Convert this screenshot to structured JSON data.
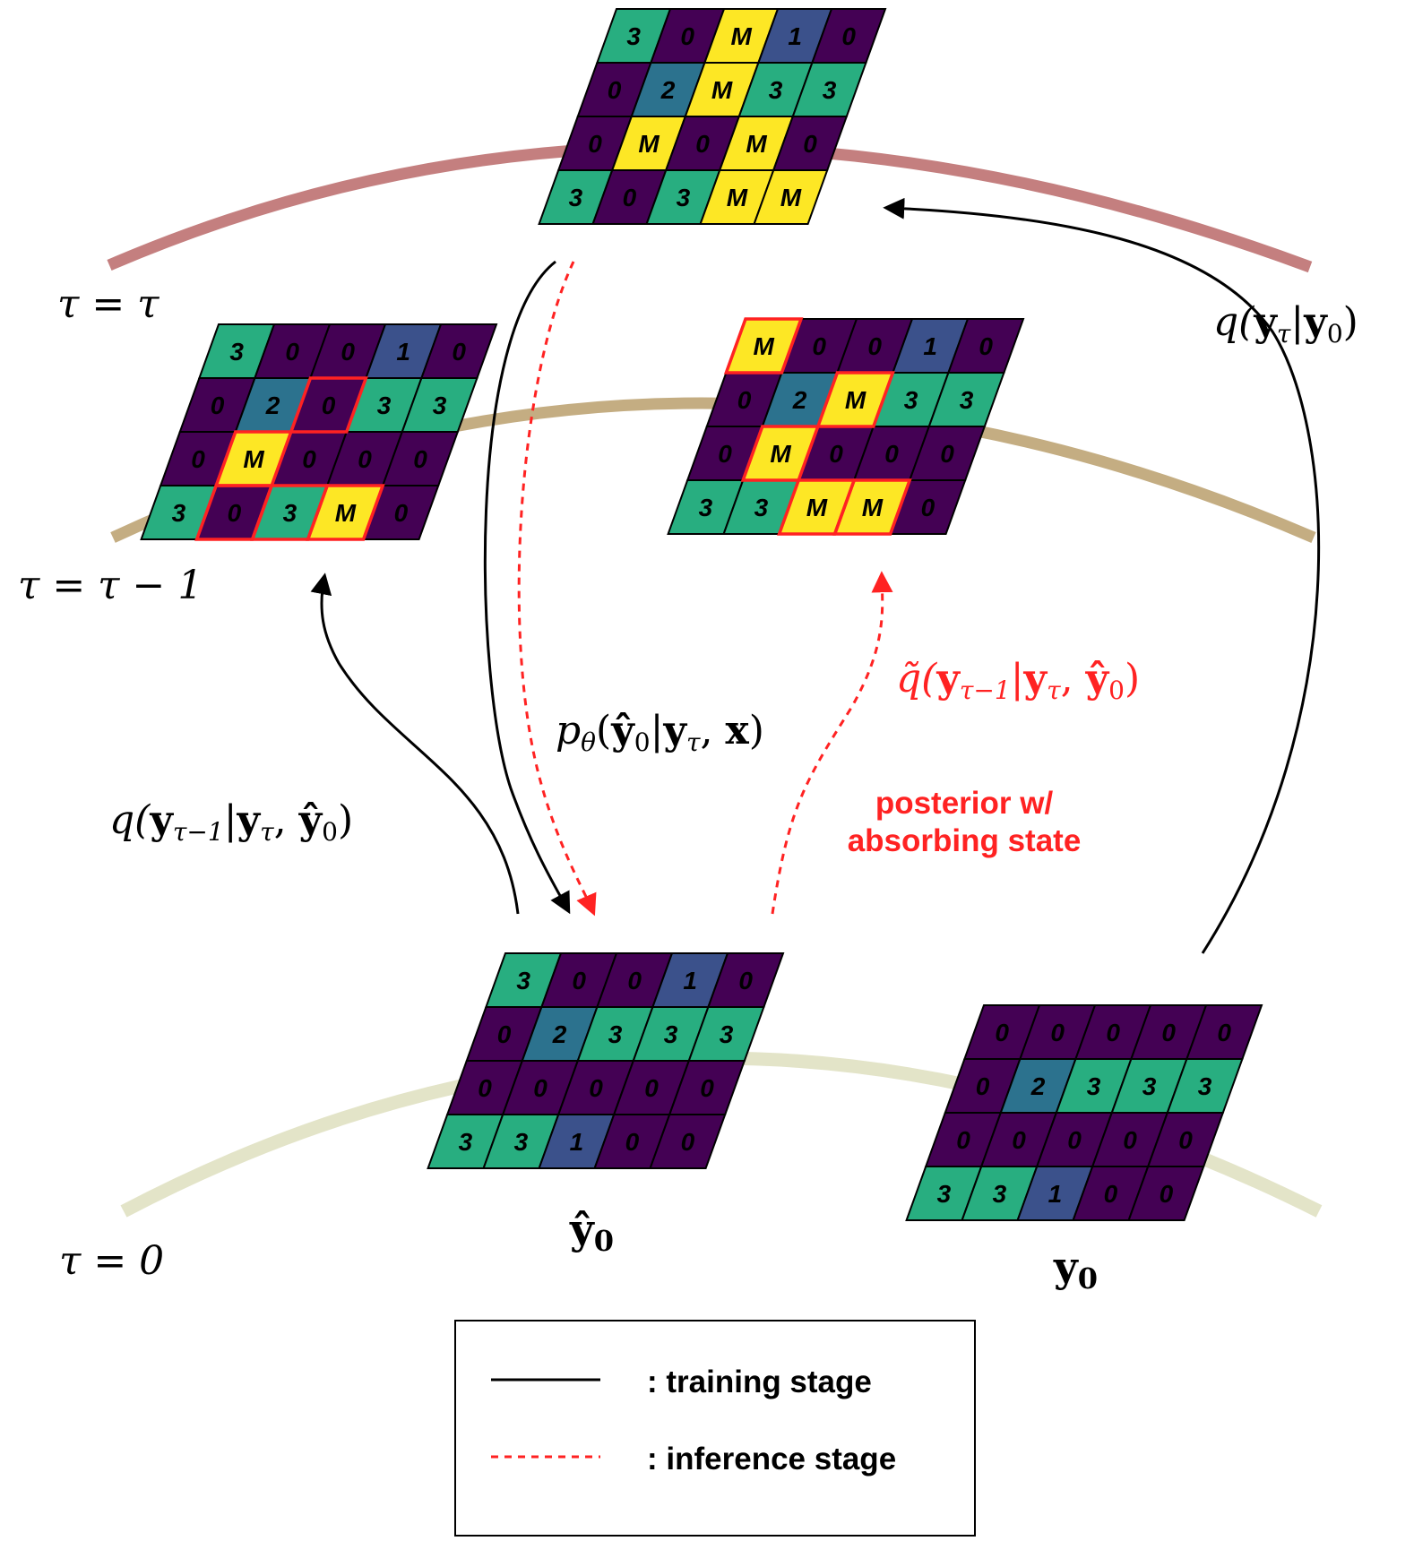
{
  "colors": {
    "0": "#440154",
    "1": "#3b518b",
    "2": "#2c728e",
    "3": "#28ae80",
    "M": "#fde725",
    "arc_top": "#c47f7f",
    "arc_mid": "#c4ad82",
    "arc_bottom": "#e3e4c8",
    "training": "#000000",
    "inference": "#ff2222"
  },
  "levels": {
    "top": "τ = τ",
    "mid": "τ = τ − 1",
    "bottom": "τ = 0"
  },
  "grids": {
    "top": {
      "rows": [
        [
          "3",
          "0",
          "M",
          "1",
          "0"
        ],
        [
          "0",
          "2",
          "M",
          "3",
          "3"
        ],
        [
          "0",
          "M",
          "0",
          "M",
          "0"
        ],
        [
          "3",
          "0",
          "3",
          "M",
          "M"
        ]
      ],
      "highlight": []
    },
    "mid_left": {
      "rows": [
        [
          "3",
          "0",
          "0",
          "1",
          "0"
        ],
        [
          "0",
          "2",
          "0",
          "3",
          "3"
        ],
        [
          "0",
          "M",
          "0",
          "0",
          "0"
        ],
        [
          "3",
          "0",
          "3",
          "M",
          "0"
        ]
      ],
      "highlight": [
        [
          1,
          2
        ],
        [
          2,
          1
        ],
        [
          3,
          1
        ],
        [
          3,
          2
        ],
        [
          3,
          3
        ]
      ]
    },
    "mid_right": {
      "rows": [
        [
          "M",
          "0",
          "0",
          "1",
          "0"
        ],
        [
          "0",
          "2",
          "M",
          "3",
          "3"
        ],
        [
          "0",
          "M",
          "0",
          "0",
          "0"
        ],
        [
          "3",
          "3",
          "M",
          "M",
          "0"
        ]
      ],
      "highlight": [
        [
          0,
          0
        ],
        [
          1,
          2
        ],
        [
          2,
          1
        ],
        [
          3,
          2
        ],
        [
          3,
          3
        ]
      ]
    },
    "pred": {
      "rows": [
        [
          "3",
          "0",
          "0",
          "1",
          "0"
        ],
        [
          "0",
          "2",
          "3",
          "3",
          "3"
        ],
        [
          "0",
          "0",
          "0",
          "0",
          "0"
        ],
        [
          "3",
          "3",
          "1",
          "0",
          "0"
        ]
      ],
      "highlight": []
    },
    "gt": {
      "rows": [
        [
          "0",
          "0",
          "0",
          "0",
          "0"
        ],
        [
          "0",
          "2",
          "3",
          "3",
          "3"
        ],
        [
          "0",
          "0",
          "0",
          "0",
          "0"
        ],
        [
          "3",
          "3",
          "1",
          "0",
          "0"
        ]
      ],
      "highlight": []
    }
  },
  "grid_labels": {
    "pred": "ŷ",
    "pred_sub": "0",
    "gt": "y",
    "gt_sub": "0"
  },
  "formulas": {
    "forward": {
      "pre": "q(",
      "y": "y",
      "tau": "τ",
      "mid": "|",
      "y0": "y",
      "zero": "0",
      "post": ")"
    },
    "model": {
      "pre": "p",
      "theta": "θ",
      "open": "(",
      "yhat": "ŷ",
      "zero": "0",
      "bar": "|",
      "y": "y",
      "tau": "τ",
      "comma": ", ",
      "x": "x",
      "close": ")"
    },
    "train_post": {
      "pre": "q(",
      "y": "y",
      "sub": "τ−1",
      "bar": "|",
      "y2": "y",
      "tau": "τ",
      "comma": ", ",
      "yhat": "ŷ",
      "zero": "0",
      "close": ")"
    },
    "infer_post": {
      "pre": "q̃(",
      "y": "y",
      "sub": "τ−1",
      "bar": "|",
      "y2": "y",
      "tau": "τ",
      "comma": ", ",
      "yhat": "ŷ",
      "zero": "0",
      "close": ")"
    }
  },
  "annotation": {
    "line1": "posterior w/",
    "line2": "absorbing state"
  },
  "legend": {
    "training": ":  training stage",
    "inference": ":  inference stage"
  }
}
